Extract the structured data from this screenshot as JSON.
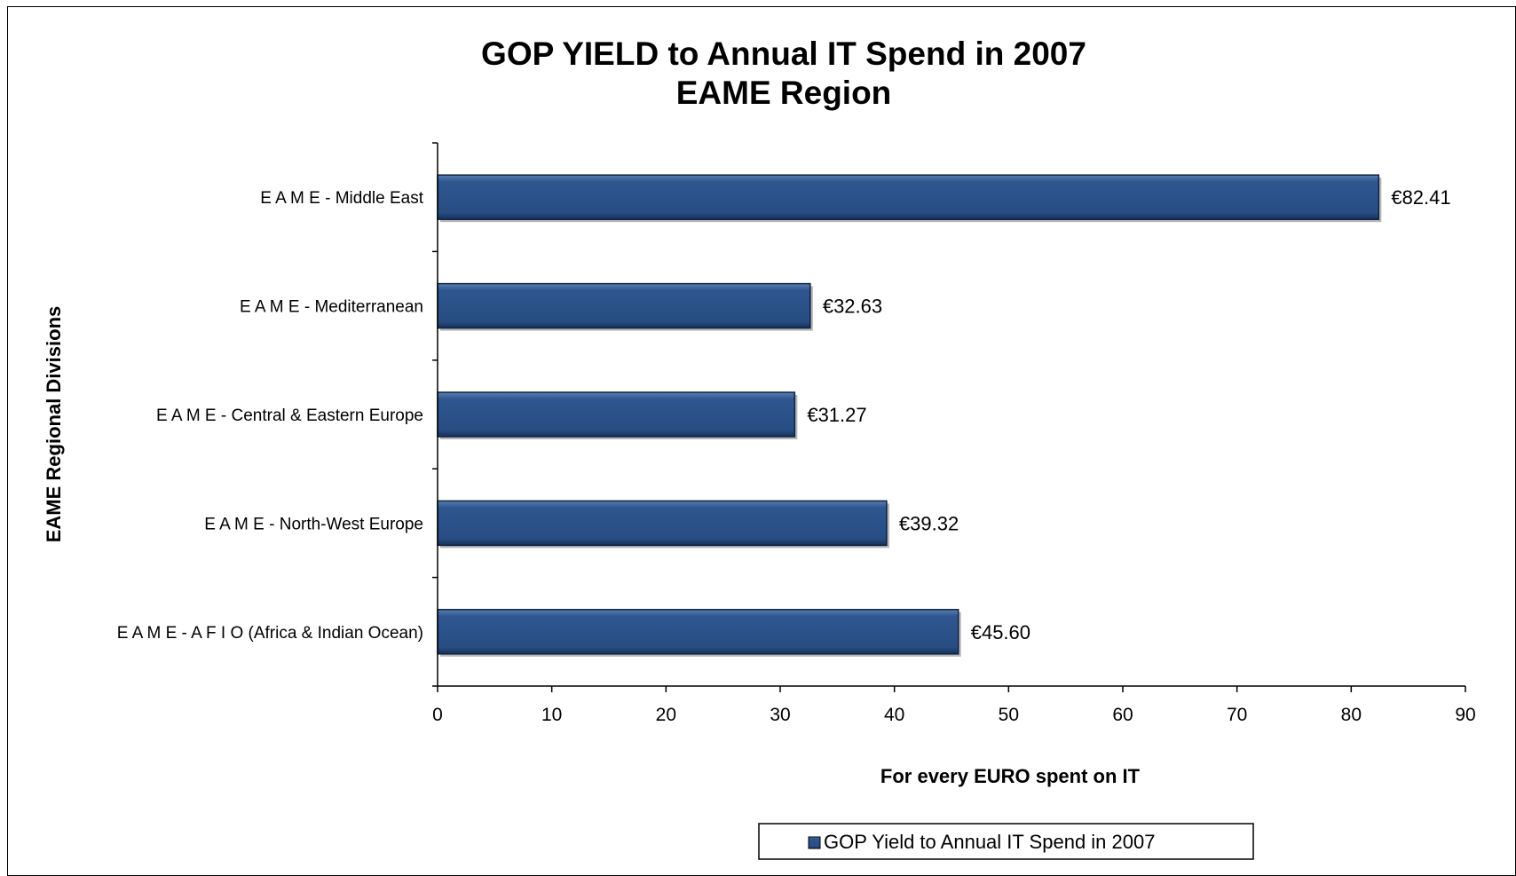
{
  "chart_data": {
    "type": "bar",
    "orientation": "horizontal",
    "title": "GOP YIELD to Annual IT Spend in 2007",
    "subtitle": "EAME Region",
    "xlabel": "For every EURO spent on IT",
    "ylabel": "EAME Regional Divisions",
    "categories": [
      "E A M E - Middle East",
      "E A M E - Mediterranean",
      "E A M E - Central & Eastern Europe",
      "E A M E - North-West Europe",
      "E A M E - A F I O (Africa & Indian Ocean)"
    ],
    "series": [
      {
        "name": "GOP Yield to Annual IT Spend in 2007",
        "values": [
          82.41,
          32.63,
          31.27,
          39.32,
          45.6
        ],
        "labels": [
          "€82.41",
          "€32.63",
          "€31.27",
          "€39.32",
          "€45.60"
        ],
        "color": "#2c5288"
      }
    ],
    "xlim": [
      0,
      90
    ],
    "xticks": [
      "0",
      "10",
      "20",
      "30",
      "40",
      "50",
      "60",
      "70",
      "80",
      "90"
    ],
    "grid": false,
    "legend": "bottom"
  }
}
